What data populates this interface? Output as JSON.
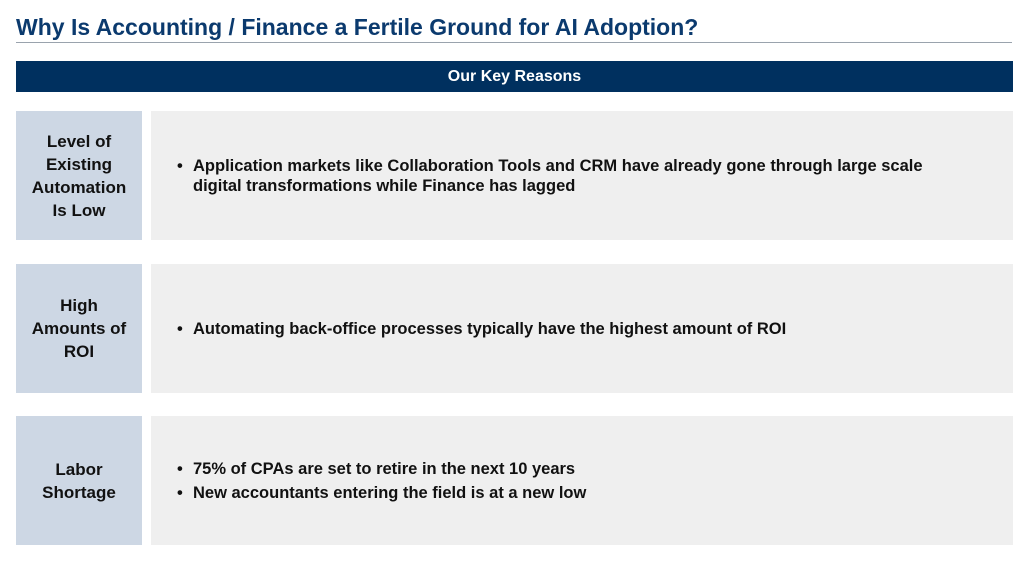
{
  "title": "Why Is Accounting / Finance a Fertile Ground for AI Adoption?",
  "banner": "Our Key Reasons",
  "rows": [
    {
      "label": "Level of Existing Automation Is Low",
      "bullets": [
        "Application markets like Collaboration Tools and CRM have already gone through large scale digital transformations while Finance has lagged"
      ]
    },
    {
      "label": "High Amounts of ROI",
      "bullets": [
        "Automating back-office processes typically have the highest amount of ROI"
      ]
    },
    {
      "label": "Labor Shortage",
      "bullets": [
        "75% of CPAs are set to retire in the next 10 years",
        "New accountants entering the field is at a new low"
      ]
    }
  ]
}
